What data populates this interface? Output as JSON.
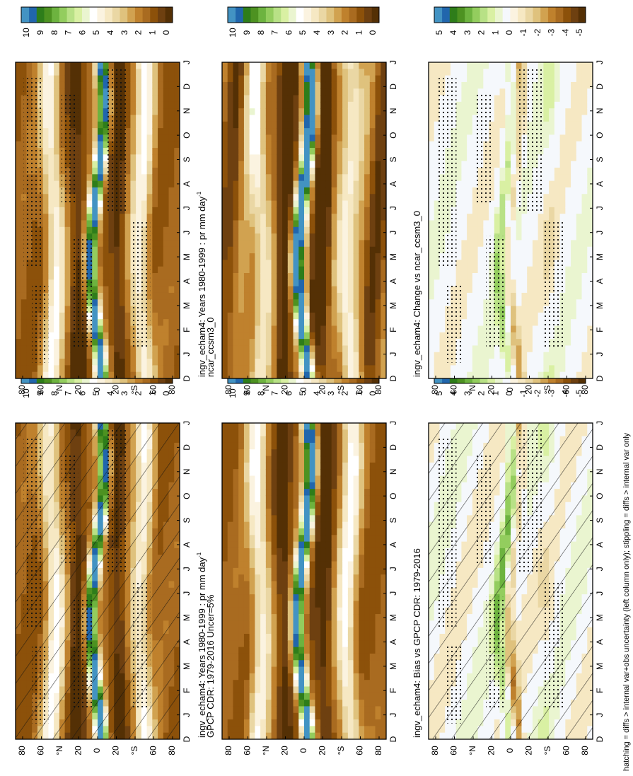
{
  "figure_caption": "hatching = diffs > internal var+obs uncertainty (left column only); stippling = diffs > internal var only",
  "colors": {
    "abs_palette": [
      "#543005",
      "#6e4010",
      "#8c510a",
      "#a96b20",
      "#bf812d",
      "#d1a250",
      "#dfc27d",
      "#ead7a4",
      "#f6e8c3",
      "#fbf3e0",
      "#ffffff",
      "#eaf5d0",
      "#d9f0a3",
      "#b8e186",
      "#93cd5e",
      "#6db33f",
      "#4d9221",
      "#2e7d1a",
      "#2166ac",
      "#4393c3"
    ],
    "diff_palette": [
      "#543005",
      "#6e4010",
      "#8c510a",
      "#a96b20",
      "#bf812d",
      "#d1a250",
      "#dfc27d",
      "#ead7a4",
      "#f6e8c3",
      "#fbf3e0",
      "#f5f8fc",
      "#eaf5d0",
      "#d9f0a3",
      "#b8e186",
      "#93cd5e",
      "#6db33f",
      "#4d9221",
      "#2e7d1a",
      "#2166ac",
      "#4393c3"
    ],
    "diff_background": "#f5f8fc"
  },
  "chart_data": [
    {
      "id": "model-climatology",
      "type": "heatmap",
      "title": "ingv_echam4: Years 1980-1999 : pr mm day",
      "title_superscript": "-1",
      "x_ticks": [
        "D",
        "J",
        "F",
        "M",
        "A",
        "M",
        "J",
        "J",
        "A",
        "S",
        "O",
        "N",
        "D",
        "J"
      ],
      "y_ticks": [
        "80",
        "60",
        "°N",
        "20",
        "0",
        "20",
        "°S",
        "60",
        "80"
      ],
      "colorbar_labels": [
        "10",
        "9",
        "8",
        "7",
        "6",
        "5",
        "4",
        "3",
        "2",
        "1",
        "0"
      ],
      "value_range": [
        0,
        10
      ],
      "overlay": "hatching and stippling"
    },
    {
      "id": "model-climatology-stippled",
      "type": "heatmap",
      "title": "ingv_echam4: Years 1980-1999 : pr mm day",
      "title_superscript": "-1",
      "x_ticks": [
        "D",
        "J",
        "F",
        "M",
        "A",
        "M",
        "J",
        "J",
        "A",
        "S",
        "O",
        "N",
        "D",
        "J"
      ],
      "y_ticks": [
        "80",
        "60",
        "°N",
        "20",
        "0",
        "20",
        "°S",
        "60",
        "80"
      ],
      "colorbar_labels": [
        "10",
        "9",
        "8",
        "7",
        "6",
        "5",
        "4",
        "3",
        "2",
        "1",
        "0"
      ],
      "value_range": [
        0,
        10
      ],
      "overlay": "stippling"
    },
    {
      "id": "obs-climatology",
      "type": "heatmap",
      "title": "GPCP CDR: 1979-2016 Uncer=5%",
      "x_ticks": [
        "D",
        "J",
        "F",
        "M",
        "A",
        "M",
        "J",
        "J",
        "A",
        "S",
        "O",
        "N",
        "D",
        "J"
      ],
      "y_ticks": [
        "80",
        "60",
        "°N",
        "20",
        "0",
        "20",
        "°S",
        "60",
        "80"
      ],
      "colorbar_labels": [
        "10",
        "9",
        "8",
        "7",
        "6",
        "5",
        "4",
        "3",
        "2",
        "1",
        "0"
      ],
      "value_range": [
        0,
        10
      ],
      "overlay": "none"
    },
    {
      "id": "reference-model-climatology",
      "type": "heatmap",
      "title": "ncar_ccsm3_0",
      "x_ticks": [
        "D",
        "J",
        "F",
        "M",
        "A",
        "M",
        "J",
        "J",
        "A",
        "S",
        "O",
        "N",
        "D",
        "J"
      ],
      "y_ticks": [
        "80",
        "60",
        "°N",
        "20",
        "0",
        "20",
        "°S",
        "60",
        "80"
      ],
      "colorbar_labels": [
        "10",
        "9",
        "8",
        "7",
        "6",
        "5",
        "4",
        "3",
        "2",
        "1",
        "0"
      ],
      "value_range": [
        0,
        10
      ],
      "overlay": "none"
    },
    {
      "id": "bias-vs-obs",
      "type": "heatmap",
      "title": "ingv_echam4: Bias vs GPCP CDR: 1979-2016",
      "x_ticks": [
        "D",
        "J",
        "F",
        "M",
        "A",
        "M",
        "J",
        "J",
        "A",
        "S",
        "O",
        "N",
        "D",
        "J"
      ],
      "y_ticks": [
        "80",
        "60",
        "°N",
        "20",
        "0",
        "20",
        "°S",
        "60",
        "80"
      ],
      "colorbar_labels": [
        "5",
        "4",
        "3",
        "2",
        "1",
        "0",
        "-1",
        "-2",
        "-3",
        "-4",
        "-5"
      ],
      "value_range": [
        -5,
        5
      ],
      "overlay": "hatching and stippling"
    },
    {
      "id": "change-vs-reference",
      "type": "heatmap",
      "title": "ingv_echam4: Change vs ncar_ccsm3_0",
      "x_ticks": [
        "D",
        "J",
        "F",
        "M",
        "A",
        "M",
        "J",
        "J",
        "A",
        "S",
        "O",
        "N",
        "D",
        "J"
      ],
      "y_ticks": [
        "80",
        "60",
        "°N",
        "20",
        "0",
        "20",
        "°S",
        "60",
        "80"
      ],
      "colorbar_labels": [
        "5",
        "4",
        "3",
        "2",
        "1",
        "0",
        "-1",
        "-2",
        "-3",
        "-4",
        "-5"
      ],
      "value_range": [
        -5,
        5
      ],
      "overlay": "stippling"
    }
  ]
}
